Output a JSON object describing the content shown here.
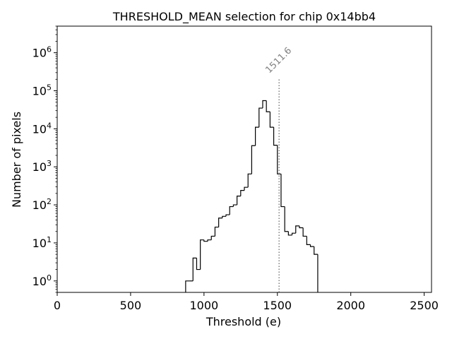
{
  "chart_data": {
    "type": "histogram",
    "title": "THRESHOLD_MEAN selection for chip 0x14bb4",
    "xlabel": "Threshold (e)",
    "ylabel": "Number of pixels",
    "xlim": [
      0,
      2550
    ],
    "ylim": [
      0.5,
      5000000
    ],
    "yscale": "log",
    "grid": false,
    "x_ticks": [
      {
        "value": 0,
        "label": "0"
      },
      {
        "value": 500,
        "label": "500"
      },
      {
        "value": 1000,
        "label": "1000"
      },
      {
        "value": 1500,
        "label": "1500"
      },
      {
        "value": 2000,
        "label": "2000"
      },
      {
        "value": 2500,
        "label": "2500"
      }
    ],
    "y_ticks": [
      {
        "value": 1,
        "base": "10",
        "exp": "0"
      },
      {
        "value": 10,
        "base": "10",
        "exp": "1"
      },
      {
        "value": 100,
        "base": "10",
        "exp": "2"
      },
      {
        "value": 1000,
        "base": "10",
        "exp": "3"
      },
      {
        "value": 10000,
        "base": "10",
        "exp": "4"
      },
      {
        "value": 100000,
        "base": "10",
        "exp": "5"
      },
      {
        "value": 1000000,
        "base": "10",
        "exp": "6"
      }
    ],
    "bin_width": 25,
    "bins_start": 875,
    "counts": [
      1,
      1,
      4,
      2,
      12,
      11,
      12,
      15,
      26,
      45,
      50,
      55,
      90,
      100,
      170,
      240,
      290,
      650,
      3600,
      11000,
      35000,
      55000,
      28000,
      11000,
      3700,
      650,
      90,
      20,
      16,
      18,
      28,
      25,
      15,
      9,
      8,
      5
    ],
    "annotation": {
      "value": 1511.6,
      "label": "1511.6",
      "line_top": 200000,
      "line_style": "dotted",
      "color": "#808080"
    }
  }
}
